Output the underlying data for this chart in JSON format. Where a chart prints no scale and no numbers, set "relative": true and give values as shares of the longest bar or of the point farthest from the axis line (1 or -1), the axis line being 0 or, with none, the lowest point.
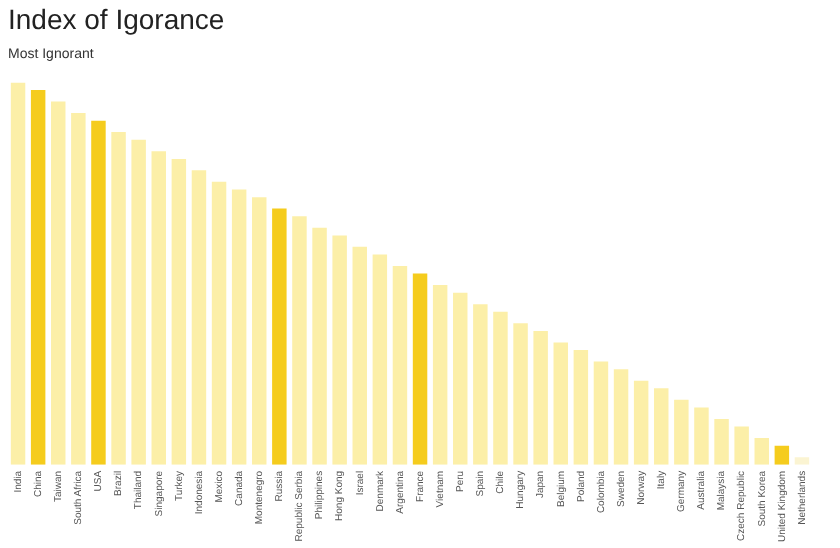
{
  "chart_data": {
    "type": "bar",
    "title": "Index of Igorance",
    "subtitle": "Most Ignorant",
    "relative": true,
    "categories": [
      "India",
      "China",
      "Taiwan",
      "South Africa",
      "USA",
      "Brazil",
      "Thailand",
      "Singapore",
      "Turkey",
      "Indonesia",
      "Mexico",
      "Canada",
      "Montenegro",
      "Russia",
      "Republic Serbia",
      "Philippines",
      "Hong Kong",
      "Israel",
      "Denmark",
      "Argentina",
      "France",
      "Vietnam",
      "Peru",
      "Spain",
      "Chile",
      "Hungary",
      "Japan",
      "Belgium",
      "Poland",
      "Colombia",
      "Sweden",
      "Norway",
      "Italy",
      "Germany",
      "Australia",
      "Malaysia",
      "Czech Republic",
      "South Korea",
      "United Kingdom",
      "Netherlands"
    ],
    "values": [
      1.0,
      0.98,
      0.95,
      0.92,
      0.9,
      0.87,
      0.85,
      0.82,
      0.8,
      0.77,
      0.74,
      0.72,
      0.7,
      0.67,
      0.65,
      0.62,
      0.6,
      0.57,
      0.55,
      0.52,
      0.5,
      0.47,
      0.45,
      0.42,
      0.4,
      0.37,
      0.35,
      0.32,
      0.3,
      0.27,
      0.25,
      0.22,
      0.2,
      0.17,
      0.15,
      0.12,
      0.1,
      0.07,
      0.05,
      0.02
    ],
    "colors": [
      "#fcefa8",
      "#f5cc1d",
      "#fcefa8",
      "#fcefa8",
      "#f5cc1d",
      "#fcefa8",
      "#fcefa8",
      "#fcefa8",
      "#fcefa8",
      "#fcefa8",
      "#fcefa8",
      "#fcefa8",
      "#fcefa8",
      "#f5cc1d",
      "#fcefa8",
      "#fcefa8",
      "#fcefa8",
      "#fcefa8",
      "#fcefa8",
      "#fcefa8",
      "#f5cc1d",
      "#fcefa8",
      "#fcefa8",
      "#fcefa8",
      "#fcefa8",
      "#fcefa8",
      "#fcefa8",
      "#fcefa8",
      "#fcefa8",
      "#fcefa8",
      "#fcefa8",
      "#fcefa8",
      "#fcefa8",
      "#fcefa8",
      "#fcefa8",
      "#fcefa8",
      "#fcefa8",
      "#fcefa8",
      "#f5cc1d",
      "#fbf4d2"
    ],
    "grid": false,
    "legend": false
  }
}
